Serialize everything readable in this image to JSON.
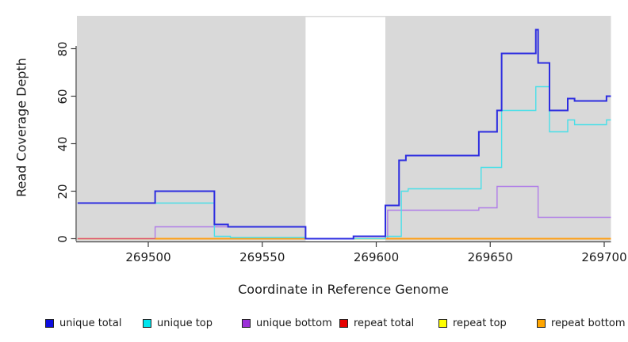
{
  "axes": {
    "x": {
      "label": "Coordinate in Reference Genome",
      "ticks": [
        269500,
        269550,
        269600,
        269650,
        269700
      ],
      "domain": [
        269468,
        269703
      ]
    },
    "y": {
      "label": "Read Coverage Depth",
      "ticks": [
        0,
        20,
        40,
        60,
        80
      ],
      "domain": [
        0,
        96
      ]
    }
  },
  "chart_data": {
    "type": "line",
    "subtype": "step-post",
    "title": "",
    "xlabel": "Coordinate in Reference Genome",
    "ylabel": "Read Coverage Depth",
    "x_domain": [
      269468,
      269703
    ],
    "y_domain": [
      0,
      96
    ],
    "plot_background": "#d9d9d9",
    "white_gap_band": [
      269569,
      269604
    ],
    "grid": false,
    "legend_position": "bottom",
    "series": [
      {
        "name": "unique total",
        "line_color": "#2d2de0",
        "swatch_color": "#0d0de0",
        "stroke_width": 2.0,
        "z": 6,
        "steps": [
          [
            269469,
            15
          ],
          [
            269503,
            20
          ],
          [
            269529,
            6
          ],
          [
            269535,
            5
          ],
          [
            269569,
            0
          ],
          [
            269590,
            1
          ],
          [
            269604,
            14
          ],
          [
            269610,
            33
          ],
          [
            269613,
            35
          ],
          [
            269645,
            45
          ],
          [
            269653,
            54
          ],
          [
            269655,
            78
          ],
          [
            269670,
            88
          ],
          [
            269671,
            74
          ],
          [
            269676,
            54
          ],
          [
            269684,
            59
          ],
          [
            269687,
            58
          ],
          [
            269701,
            60
          ]
        ]
      },
      {
        "name": "unique top",
        "line_color": "#49dfe8",
        "swatch_color": "#00e5ee",
        "stroke_width": 1.4,
        "z": 5,
        "steps": [
          [
            269469,
            15
          ],
          [
            269529,
            1
          ],
          [
            269536,
            0.5
          ],
          [
            269569,
            0
          ],
          [
            269604,
            1
          ],
          [
            269611,
            20
          ],
          [
            269614,
            21
          ],
          [
            269646,
            30
          ],
          [
            269655,
            54
          ],
          [
            269670,
            64
          ],
          [
            269676,
            45
          ],
          [
            269684,
            50
          ],
          [
            269687,
            48
          ],
          [
            269701,
            50
          ]
        ]
      },
      {
        "name": "unique bottom",
        "line_color": "#b07ce8",
        "swatch_color": "#9c31d9",
        "stroke_width": 1.4,
        "z": 1,
        "steps": [
          [
            269469,
            0
          ],
          [
            269503,
            5
          ],
          [
            269569,
            0
          ],
          [
            269605,
            12
          ],
          [
            269645,
            13
          ],
          [
            269653,
            22
          ],
          [
            269671,
            9
          ]
        ]
      },
      {
        "name": "repeat total",
        "line_color": "#e0506e",
        "swatch_color": "#e60000",
        "stroke_width": 1.4,
        "z": 3,
        "steps": [
          [
            269469,
            0
          ]
        ]
      },
      {
        "name": "repeat top",
        "line_color": "#ededed00-fix",
        "swatch_color": "#ffff00",
        "stroke_width": 1.4,
        "z": 2,
        "steps": [
          [
            269469,
            0
          ]
        ]
      },
      {
        "name": "repeat bottom",
        "line_color": "#ff9e14",
        "swatch_color": "#ffa500",
        "stroke_width": 2.0,
        "z": 4,
        "steps": [
          [
            269503,
            0
          ]
        ]
      }
    ]
  },
  "legend": {
    "items": [
      {
        "label": "unique total",
        "color": "#0d0de0"
      },
      {
        "label": "unique top",
        "color": "#00e5ee"
      },
      {
        "label": "unique bottom",
        "color": "#9c31d9"
      },
      {
        "label": "repeat total",
        "color": "#e60000"
      },
      {
        "label": "repeat top",
        "color": "#ffff00"
      },
      {
        "label": "repeat bottom",
        "color": "#ffa500"
      }
    ]
  }
}
